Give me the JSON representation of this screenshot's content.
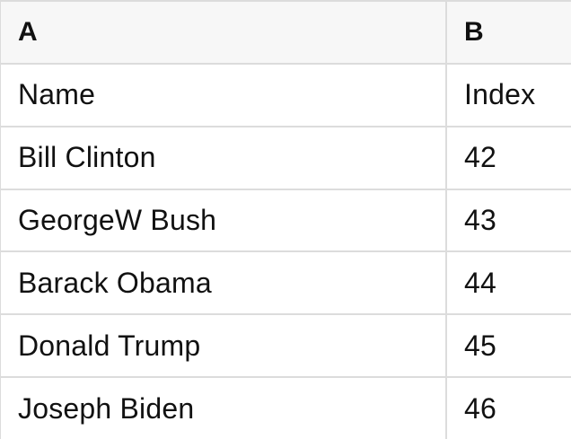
{
  "colors": {
    "header_bg": "#f7f7f7",
    "border": "#dcdcdc",
    "text": "#111111"
  },
  "table": {
    "column_headers": [
      "A",
      "B"
    ],
    "rows": [
      {
        "cells": [
          "Name",
          "Index"
        ]
      },
      {
        "cells": [
          "Bill Clinton",
          "42"
        ]
      },
      {
        "cells": [
          "GeorgeW Bush",
          "43"
        ]
      },
      {
        "cells": [
          "Barack Obama",
          "44"
        ]
      },
      {
        "cells": [
          "Donald Trump",
          "45"
        ]
      },
      {
        "cells": [
          "Joseph Biden",
          "46"
        ]
      }
    ]
  }
}
